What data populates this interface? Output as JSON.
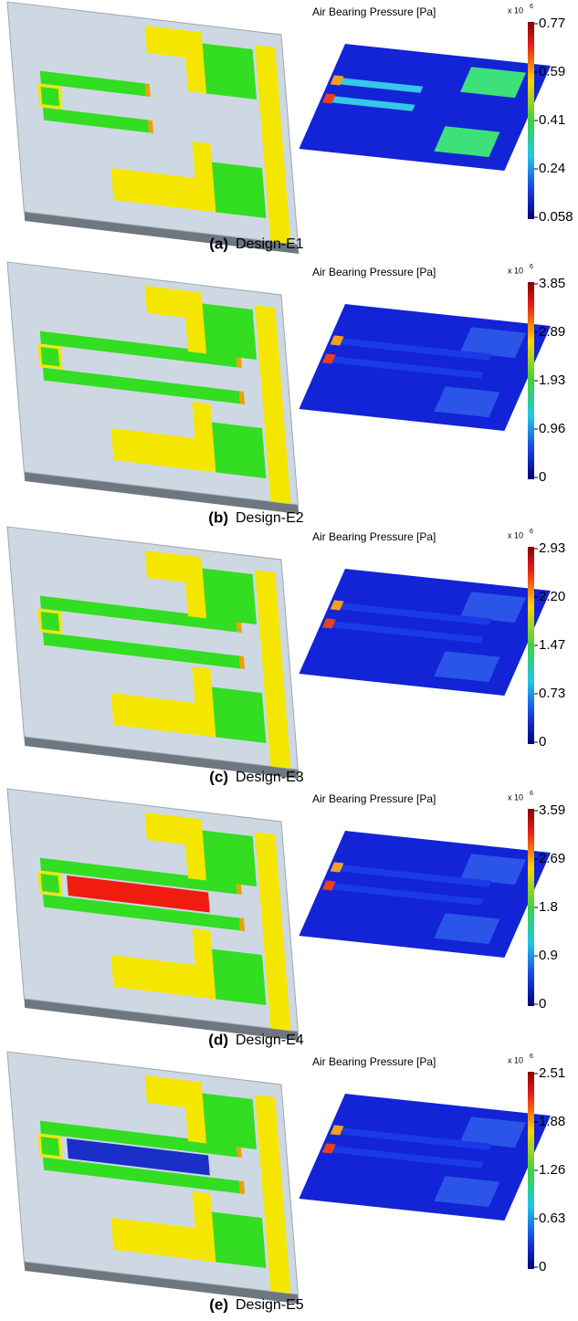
{
  "panels": [
    {
      "label": "(a)",
      "caption": "Design-E1",
      "colorbar_title": "Air Bearing Pressure [Pa]",
      "multiplier": "x 10",
      "exponent": "6",
      "ticks": [
        "0.77",
        "0.59",
        "0.41",
        "0.24",
        "0.058"
      ]
    },
    {
      "label": "(b)",
      "caption": "Design-E2",
      "colorbar_title": "Air Bearing Pressure [Pa]",
      "multiplier": "x 10",
      "exponent": "6",
      "ticks": [
        "3.85",
        "2.89",
        "1.93",
        "0.96",
        "0"
      ]
    },
    {
      "label": "(c)",
      "caption": "Design-E3",
      "colorbar_title": "Air Bearing Pressure [Pa]",
      "multiplier": "x 10",
      "exponent": "6",
      "ticks": [
        "2.93",
        "2.20",
        "1.47",
        "0.73",
        "0"
      ]
    },
    {
      "label": "(d)",
      "caption": "Design-E4",
      "colorbar_title": "Air Bearing Pressure [Pa]",
      "multiplier": "x 10",
      "exponent": "6",
      "ticks": [
        "3.59",
        "2.69",
        "1.8",
        "0.9",
        "0"
      ]
    },
    {
      "label": "(e)",
      "caption": "Design-E5",
      "colorbar_title": "Air Bearing Pressure [Pa]",
      "multiplier": "x 10",
      "exponent": "6",
      "ticks": [
        "2.51",
        "1.88",
        "1.26",
        "0.63",
        "0"
      ]
    }
  ]
}
